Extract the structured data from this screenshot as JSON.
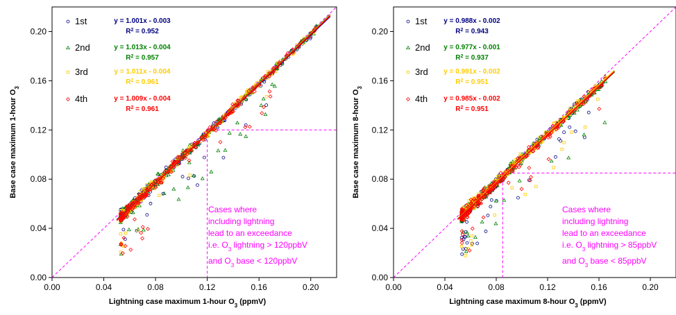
{
  "chart_data": [
    {
      "type": "scatter",
      "title": "",
      "xlabel": "Lightning case maximum 1-hour O3 (ppmV)",
      "ylabel": "Base case maximum 1-hour O3",
      "xlim": [
        0,
        0.22
      ],
      "ylim": [
        0,
        0.22
      ],
      "xticks": [
        "0.00",
        "0.04",
        "0.08",
        "0.12",
        "0.16",
        "0.20"
      ],
      "yticks": [
        "0.00",
        "0.04",
        "0.08",
        "0.12",
        "0.16",
        "0.20"
      ],
      "legend_position": "top-left",
      "threshold": 0.12,
      "annotation": [
        "Cases where",
        "including lightning",
        "lead to an exceedance",
        "i.e. O3 lightning > 120ppbV",
        "and O3 base < 120ppbV"
      ],
      "series": [
        {
          "name": "1st",
          "color": "#000080",
          "marker": "circle",
          "slope": 1.001,
          "intercept": -0.003,
          "equation": "y = 1.001x - 0.003",
          "r2": "R2 = 0.952"
        },
        {
          "name": "2nd",
          "color": "#008000",
          "marker": "triangle",
          "slope": 1.013,
          "intercept": -0.004,
          "equation": "y = 1.013x - 0.004",
          "r2": "R2 = 0.957"
        },
        {
          "name": "3rd",
          "color": "#ffcc00",
          "marker": "square",
          "slope": 1.011,
          "intercept": -0.004,
          "equation": "y = 1.011x - 0.004",
          "r2": "R2 = 0.961"
        },
        {
          "name": "4th",
          "color": "#ff0000",
          "marker": "diamond",
          "slope": 1.009,
          "intercept": -0.004,
          "equation": "y = 1.009x - 0.004",
          "r2": "R2 = 0.961"
        }
      ],
      "approx_data_range": [
        0.05,
        0.215
      ]
    },
    {
      "type": "scatter",
      "title": "",
      "xlabel": "Lightning case maximum 8-hour O3 (ppmV)",
      "ylabel": "Base case maximum 8-hour O3",
      "xlim": [
        0,
        0.22
      ],
      "ylim": [
        0,
        0.22
      ],
      "xticks": [
        "0.00",
        "0.04",
        "0.08",
        "0.12",
        "0.16",
        "0.20"
      ],
      "yticks": [
        "0.00",
        "0.04",
        "0.08",
        "0.12",
        "0.16",
        "0.20"
      ],
      "legend_position": "top-left",
      "threshold": 0.085,
      "annotation": [
        "Cases where",
        "including lightning",
        "lead to an exceedance",
        "i.e. O3 lightning > 85ppbV",
        "and O3 base < 85ppbV"
      ],
      "series": [
        {
          "name": "1st",
          "color": "#000080",
          "marker": "circle",
          "slope": 0.988,
          "intercept": -0.002,
          "equation": "y = 0.988x - 0.002",
          "r2": "R2 = 0.943"
        },
        {
          "name": "2nd",
          "color": "#008000",
          "marker": "triangle",
          "slope": 0.977,
          "intercept": -0.001,
          "equation": "y = 0.977x - 0.001",
          "r2": "R2 = 0.937"
        },
        {
          "name": "3rd",
          "color": "#ffcc00",
          "marker": "square",
          "slope": 0.991,
          "intercept": -0.002,
          "equation": "y = 0.991x - 0.002",
          "r2": "R2 = 0.951"
        },
        {
          "name": "4th",
          "color": "#ff0000",
          "marker": "diamond",
          "slope": 0.985,
          "intercept": -0.002,
          "equation": "y = 0.985x - 0.002",
          "r2": "R2 = 0.951"
        }
      ],
      "approx_data_range": [
        0.05,
        0.172
      ]
    }
  ]
}
